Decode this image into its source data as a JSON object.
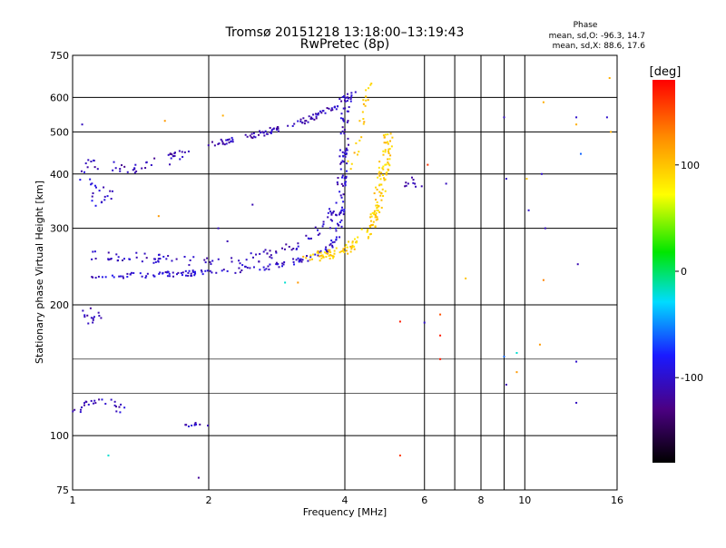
{
  "header": {
    "title_line1": "Tromsø 20151218 13:18:00–13:19:43",
    "title_line2": "RwPretec (8p)",
    "phase_label": "Phase",
    "phase_o_stats": "mean, sd,O: -96.3, 14.7",
    "phase_x_stats": "mean, sd,X:  88.6, 17.6"
  },
  "colorbar": {
    "unit_label": "[deg]",
    "min": -180,
    "max": 180,
    "ticks": [
      {
        "value": 100,
        "label": "100"
      },
      {
        "value": 0,
        "label": "0"
      },
      {
        "value": -100,
        "label": "-100"
      }
    ]
  },
  "chart_data": {
    "type": "scatter",
    "title": "Tromsø 20151218 13:18:00–13:19:43",
    "subtitle": "RwPretec (8p)",
    "xlabel": "Frequency [MHz]",
    "ylabel": "Stationary phase Virtual Height [km]",
    "x_scale": "log",
    "y_scale": "log",
    "xlim": [
      1,
      16
    ],
    "ylim": [
      75,
      750
    ],
    "x_ticks": [
      {
        "value": 1,
        "label": "1"
      },
      {
        "value": 2,
        "label": "2"
      },
      {
        "value": 4,
        "label": "4"
      },
      {
        "value": 6,
        "label": "6"
      },
      {
        "value": 8,
        "label": "8"
      },
      {
        "value": 10,
        "label": "10"
      },
      {
        "value": 16,
        "label": "16"
      }
    ],
    "y_ticks": [
      {
        "value": 75,
        "label": "75"
      },
      {
        "value": 100,
        "label": "100"
      },
      {
        "value": 200,
        "label": "200"
      },
      {
        "value": 300,
        "label": "300"
      },
      {
        "value": 400,
        "label": "400"
      },
      {
        "value": 500,
        "label": "500"
      },
      {
        "value": 600,
        "label": "600"
      },
      {
        "value": 750,
        "label": "750"
      }
    ],
    "x_grid": [
      2,
      4,
      6,
      8,
      10
    ],
    "x_minor_grid": [
      7,
      9
    ],
    "y_grid": [
      100,
      200,
      300,
      400,
      500,
      600
    ],
    "y_minor_grid": [
      125,
      150
    ],
    "grid": true,
    "color_variable": "phase [deg]",
    "series": [
      {
        "trace": [
          [
            1.1,
            232
          ],
          [
            1.3,
            233
          ],
          [
            1.5,
            234
          ],
          [
            1.8,
            236
          ],
          [
            2.0,
            238
          ],
          [
            2.4,
            241
          ],
          [
            2.8,
            246
          ],
          [
            3.2,
            253
          ],
          [
            3.6,
            265
          ],
          [
            3.85,
            285
          ],
          [
            3.95,
            330
          ],
          [
            4.0,
            400
          ],
          [
            4.02,
            470
          ]
        ],
        "phase": -100,
        "count": 180,
        "spread": 0.015
      },
      {
        "trace": [
          [
            1.1,
            260
          ],
          [
            1.4,
            258
          ],
          [
            1.8,
            252
          ],
          [
            2.2,
            250
          ],
          [
            2.6,
            258
          ],
          [
            3.0,
            270
          ],
          [
            3.4,
            285
          ],
          [
            3.7,
            310
          ],
          [
            3.85,
            350
          ],
          [
            3.95,
            420
          ],
          [
            4.0,
            520
          ],
          [
            4.05,
            620
          ]
        ],
        "phase": -105,
        "count": 140,
        "spread": 0.025
      },
      {
        "trace": [
          [
            1.95,
            465
          ],
          [
            2.3,
            480
          ],
          [
            2.7,
            500
          ],
          [
            3.1,
            520
          ],
          [
            3.5,
            545
          ],
          [
            3.8,
            570
          ],
          [
            4.0,
            595
          ],
          [
            4.2,
            615
          ]
        ],
        "phase": -108,
        "count": 110,
        "spread": 0.015
      },
      {
        "trace": [
          [
            3.3,
            255
          ],
          [
            3.7,
            262
          ],
          [
            4.1,
            270
          ],
          [
            4.4,
            285
          ],
          [
            4.6,
            310
          ],
          [
            4.75,
            350
          ],
          [
            4.85,
            400
          ],
          [
            4.95,
            450
          ],
          [
            5.0,
            500
          ]
        ],
        "phase": 95,
        "count": 170,
        "spread": 0.025
      },
      {
        "trace": [
          [
            4.05,
            400
          ],
          [
            4.3,
            480
          ],
          [
            4.4,
            560
          ],
          [
            4.5,
            610
          ],
          [
            4.6,
            640
          ]
        ],
        "phase": 100,
        "count": 25,
        "spread": 0.02
      },
      {
        "trace": [
          [
            1.05,
            420
          ],
          [
            1.2,
            415
          ],
          [
            1.4,
            410
          ],
          [
            1.6,
            430
          ],
          [
            1.8,
            460
          ]
        ],
        "phase": -110,
        "count": 45,
        "spread": 0.03
      },
      {
        "trace": [
          [
            1.05,
            395
          ],
          [
            1.1,
            370
          ],
          [
            1.15,
            340
          ],
          [
            1.2,
            365
          ]
        ],
        "phase": -100,
        "count": 22,
        "spread": 0.03
      },
      {
        "trace": [
          [
            1.05,
            195
          ],
          [
            1.1,
            185
          ],
          [
            1.15,
            190
          ]
        ],
        "phase": -110,
        "count": 14,
        "spread": 0.03
      },
      {
        "trace": [
          [
            1.0,
            115
          ],
          [
            1.1,
            120
          ],
          [
            1.2,
            122
          ],
          [
            1.3,
            112
          ]
        ],
        "phase": -105,
        "count": 28,
        "spread": 0.03
      },
      {
        "trace": [
          [
            1.75,
            105
          ],
          [
            1.9,
            106
          ],
          [
            2.0,
            104
          ]
        ],
        "phase": -105,
        "count": 10,
        "spread": 0.015
      },
      {
        "trace": [
          [
            5.4,
            375
          ],
          [
            5.6,
            385
          ],
          [
            5.8,
            370
          ]
        ],
        "phase": -115,
        "count": 10,
        "spread": 0.03
      }
    ],
    "scattered_points": [
      {
        "x": 1.05,
        "y": 520,
        "phase": -105
      },
      {
        "x": 1.6,
        "y": 530,
        "phase": 120
      },
      {
        "x": 2.15,
        "y": 545,
        "phase": 110
      },
      {
        "x": 1.2,
        "y": 90,
        "phase": -20
      },
      {
        "x": 1.9,
        "y": 80,
        "phase": -120
      },
      {
        "x": 5.3,
        "y": 90,
        "phase": 160
      },
      {
        "x": 5.3,
        "y": 183,
        "phase": 170
      },
      {
        "x": 6.0,
        "y": 182,
        "phase": -100
      },
      {
        "x": 6.5,
        "y": 190,
        "phase": 150
      },
      {
        "x": 6.5,
        "y": 170,
        "phase": 170
      },
      {
        "x": 6.5,
        "y": 150,
        "phase": 170
      },
      {
        "x": 6.1,
        "y": 420,
        "phase": 160
      },
      {
        "x": 6.7,
        "y": 380,
        "phase": -105
      },
      {
        "x": 7.4,
        "y": 230,
        "phase": 100
      },
      {
        "x": 9.1,
        "y": 390,
        "phase": -100
      },
      {
        "x": 9.0,
        "y": 540,
        "phase": -105
      },
      {
        "x": 9.0,
        "y": 152,
        "phase": -60
      },
      {
        "x": 9.1,
        "y": 131,
        "phase": -110
      },
      {
        "x": 9.6,
        "y": 155,
        "phase": -20
      },
      {
        "x": 9.6,
        "y": 140,
        "phase": 120
      },
      {
        "x": 10.1,
        "y": 390,
        "phase": 100
      },
      {
        "x": 10.2,
        "y": 330,
        "phase": -100
      },
      {
        "x": 10.9,
        "y": 400,
        "phase": -100
      },
      {
        "x": 11.1,
        "y": 300,
        "phase": -105
      },
      {
        "x": 11.0,
        "y": 228,
        "phase": 130
      },
      {
        "x": 11.0,
        "y": 585,
        "phase": 110
      },
      {
        "x": 10.8,
        "y": 162,
        "phase": 120
      },
      {
        "x": 13.0,
        "y": 540,
        "phase": -100
      },
      {
        "x": 13.0,
        "y": 520,
        "phase": 110
      },
      {
        "x": 13.3,
        "y": 445,
        "phase": -60
      },
      {
        "x": 13.1,
        "y": 248,
        "phase": -110
      },
      {
        "x": 13.0,
        "y": 148,
        "phase": -100
      },
      {
        "x": 13.0,
        "y": 119,
        "phase": -105
      },
      {
        "x": 15.2,
        "y": 540,
        "phase": -100
      },
      {
        "x": 15.4,
        "y": 665,
        "phase": 110
      },
      {
        "x": 15.5,
        "y": 500,
        "phase": 110
      },
      {
        "x": 2.1,
        "y": 300,
        "phase": -105
      },
      {
        "x": 2.2,
        "y": 280,
        "phase": -110
      },
      {
        "x": 2.95,
        "y": 225,
        "phase": -20
      },
      {
        "x": 3.15,
        "y": 225,
        "phase": 120
      },
      {
        "x": 2.5,
        "y": 340,
        "phase": -110
      },
      {
        "x": 1.55,
        "y": 320,
        "phase": 120
      }
    ]
  }
}
